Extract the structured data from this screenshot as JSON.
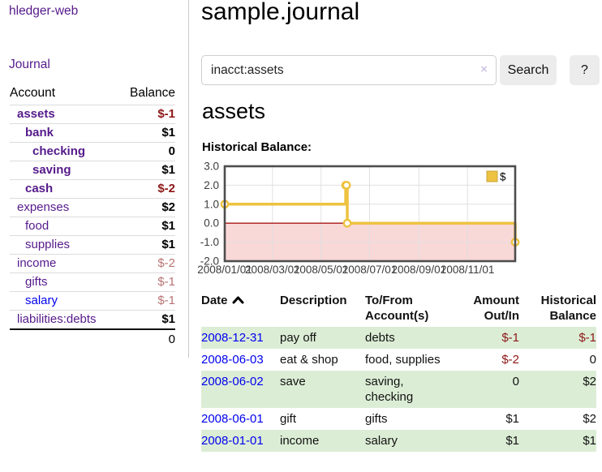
{
  "sidebar": {
    "brand": "hledger-web",
    "journal_link": "Journal",
    "table": {
      "account_header": "Account",
      "balance_header": "Balance",
      "rows": [
        {
          "name": "assets",
          "balance": "$-1",
          "indent": 1,
          "bold": true,
          "negative": true
        },
        {
          "name": "bank",
          "balance": "$1",
          "indent": 2,
          "bold": true,
          "negative": false
        },
        {
          "name": "checking",
          "balance": "0",
          "indent": 3,
          "bold": true,
          "negative": false
        },
        {
          "name": "saving",
          "balance": "$1",
          "indent": 3,
          "bold": true,
          "negative": false
        },
        {
          "name": "cash",
          "balance": "$-2",
          "indent": 2,
          "bold": true,
          "negative": true
        },
        {
          "name": "expenses",
          "balance": "$2",
          "indent": 1,
          "bold": false,
          "negative": false
        },
        {
          "name": "food",
          "balance": "$1",
          "indent": 2,
          "bold": false,
          "negative": false
        },
        {
          "name": "supplies",
          "balance": "$1",
          "indent": 2,
          "bold": false,
          "negative": false
        },
        {
          "name": "income",
          "balance": "$-2",
          "indent": 1,
          "bold": false,
          "negative": true
        },
        {
          "name": "gifts",
          "balance": "$-1",
          "indent": 2,
          "bold": false,
          "negative": true
        },
        {
          "name": "salary",
          "balance": "$-1",
          "indent": 2,
          "bold": false,
          "negative": true
        },
        {
          "name": "liabilities:debts",
          "balance": "$1",
          "indent": 1,
          "bold": false,
          "negative": false
        }
      ],
      "total": "0"
    }
  },
  "header": {
    "title": "sample.journal"
  },
  "search": {
    "value": "inacct:assets",
    "clear_icon": "×",
    "button": "Search",
    "help": "?"
  },
  "account_page": {
    "heading": "assets",
    "chart_label": "Historical Balance:"
  },
  "chart_data": {
    "type": "line",
    "title": "Historical Balance:",
    "legend": {
      "label": "$",
      "position": "top-right"
    },
    "step": true,
    "xlim_days": [
      0,
      365
    ],
    "ylim": [
      -2,
      3
    ],
    "x_ticks": [
      {
        "label": "2008/01/01",
        "day": 0
      },
      {
        "label": "2008/03/01",
        "day": 60
      },
      {
        "label": "2008/05/01",
        "day": 121
      },
      {
        "label": "2008/07/01",
        "day": 182
      },
      {
        "label": "2008/09/01",
        "day": 244
      },
      {
        "label": "2008/11/01",
        "day": 305
      }
    ],
    "y_ticks": [
      {
        "label": "3.0",
        "value": 3
      },
      {
        "label": "2.0",
        "value": 2
      },
      {
        "label": "1.0",
        "value": 1
      },
      {
        "label": "0.0",
        "value": 0
      },
      {
        "label": "-1.0",
        "value": -1
      },
      {
        "label": "-2.0",
        "value": -2
      }
    ],
    "series": [
      {
        "name": "$",
        "color": "#edc240",
        "points": [
          {
            "date": "2008-01-01",
            "day": 0,
            "value": 1
          },
          {
            "date": "2008-06-01",
            "day": 152,
            "value": 2
          },
          {
            "date": "2008-06-02",
            "day": 153,
            "value": 2
          },
          {
            "date": "2008-06-03",
            "day": 154,
            "value": 0
          },
          {
            "date": "2008-12-31",
            "day": 365,
            "value": -1
          }
        ]
      }
    ],
    "grid": {
      "show": true,
      "grid_color": "#e0e0e0",
      "border_color": "#4d4d4d",
      "zero_line_color": "#a81717",
      "negative_region_color": "#f9d8d8",
      "tick_label_color": "#3c3c3c"
    }
  },
  "register": {
    "columns": {
      "date": {
        "label": "Date",
        "sort_icon": "chevron-up"
      },
      "description": {
        "label": "Description"
      },
      "accounts": {
        "line1": "To/From",
        "line2": "Account(s)"
      },
      "amount": {
        "line1": "Amount",
        "line2": "Out/In"
      },
      "balance": {
        "line1": "Historical",
        "line2": "Balance"
      }
    },
    "rows": [
      {
        "date": "2008-12-31",
        "description": "pay off",
        "accounts": "debts",
        "amount": "$-1",
        "balance": "$-1"
      },
      {
        "date": "2008-06-03",
        "description": "eat & shop",
        "accounts": "food, supplies",
        "amount": "$-2",
        "balance": "0"
      },
      {
        "date": "2008-06-02",
        "description": "save",
        "accounts": "saving, checking",
        "amount": "0",
        "balance": "$2"
      },
      {
        "date": "2008-06-01",
        "description": "gift",
        "accounts": "gifts",
        "amount": "$1",
        "balance": "$2"
      },
      {
        "date": "2008-01-01",
        "description": "income",
        "accounts": "salary",
        "amount": "$1",
        "balance": "$1"
      }
    ]
  }
}
